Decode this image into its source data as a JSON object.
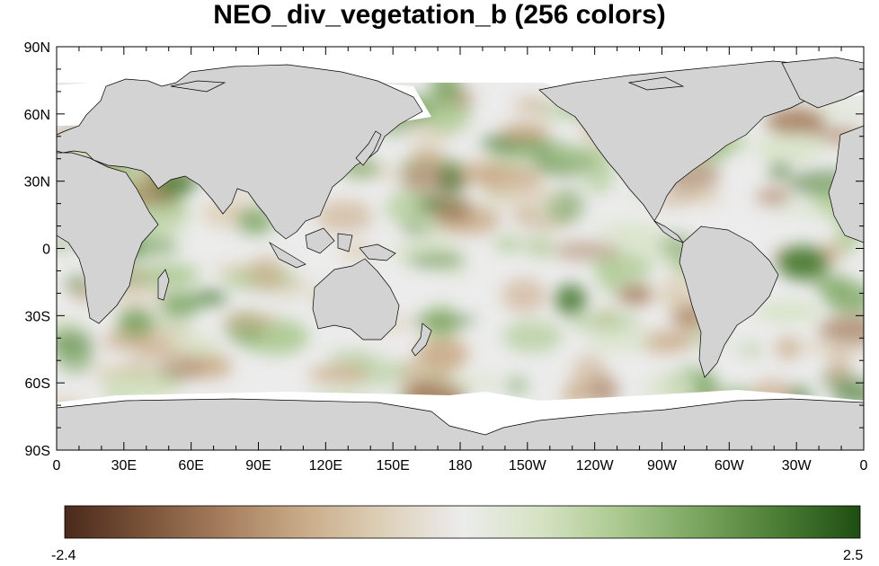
{
  "title": "NEO_div_vegetation_b (256 colors)",
  "map": {
    "projection": "cylindrical-equidistant",
    "center_longitude": 180,
    "land_color": "#d3d3d3",
    "missing_color": "#ffffff",
    "outline_color": "#000000"
  },
  "axes": {
    "lat_ticks": [
      "90N",
      "60N",
      "30N",
      "0",
      "30S",
      "60S",
      "90S"
    ],
    "lon_ticks": [
      "0",
      "30E",
      "60E",
      "90E",
      "120E",
      "150E",
      "180",
      "150W",
      "120W",
      "90W",
      "60W",
      "30W",
      "0"
    ]
  },
  "colorbar": {
    "min_label": "-2.4",
    "max_label": "2.5",
    "colors": [
      "#4a2a1c",
      "#7a5238",
      "#a67e5e",
      "#c9ab88",
      "#ddd0b8",
      "#ececec",
      "#d5e2c2",
      "#a9c88d",
      "#78a45e",
      "#4a7c34",
      "#1f4d12"
    ]
  }
}
